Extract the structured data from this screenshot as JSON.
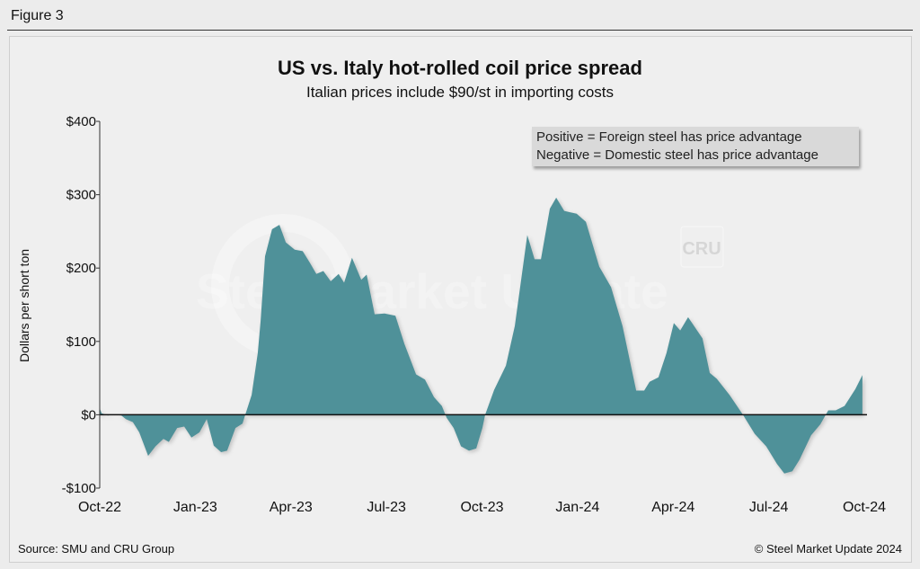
{
  "figure_label": "Figure 3",
  "footer": {
    "source": "Source: SMU and CRU Group",
    "copyright": "© Steel Market Update 2024"
  },
  "watermarks": {
    "smu": "Steel Market Update",
    "cru": "CRU"
  },
  "colors": {
    "fill": "#4f9199",
    "zero_line": "#111111"
  },
  "chart_data": {
    "type": "area",
    "title": "US vs. Italy hot-rolled coil price spread",
    "subtitle": "Italian prices include $90/st in importing costs",
    "ylabel": "Dollars per short ton",
    "xlabel": "",
    "ylim": [
      -100,
      400
    ],
    "yticks": [
      -100,
      0,
      100,
      200,
      300,
      400
    ],
    "ytick_labels": [
      "-$100",
      "$0",
      "$100",
      "$200",
      "$300",
      "$400"
    ],
    "xlim_months_since_oct22": [
      0,
      24
    ],
    "xtick_labels": [
      "Oct-22",
      "Jan-23",
      "Apr-23",
      "Jul-23",
      "Oct-23",
      "Jan-24",
      "Apr-24",
      "Jul-24",
      "Oct-24"
    ],
    "legend": [
      "Positive = Foreign steel has price advantage",
      "Negative = Domestic steel has price advantage"
    ],
    "legend_placement": "top-right",
    "grid": false,
    "x_units": "months since Oct-22",
    "points": [
      [
        0,
        9
      ],
      [
        0.06,
        2
      ],
      [
        0.25,
        -1
      ],
      [
        0.45,
        0
      ],
      [
        0.68,
        -1
      ],
      [
        0.82,
        -6
      ],
      [
        1.04,
        -10
      ],
      [
        1.24,
        -24
      ],
      [
        1.52,
        -56
      ],
      [
        1.75,
        -43
      ],
      [
        2.0,
        -33
      ],
      [
        2.17,
        -37
      ],
      [
        2.43,
        -18
      ],
      [
        2.65,
        -16
      ],
      [
        2.88,
        -31
      ],
      [
        3.13,
        -24
      ],
      [
        3.36,
        -6
      ],
      [
        3.58,
        -42
      ],
      [
        3.81,
        -51
      ],
      [
        4.0,
        -49
      ],
      [
        4.26,
        -18
      ],
      [
        4.48,
        -12
      ],
      [
        4.57,
        0
      ],
      [
        4.77,
        27
      ],
      [
        4.96,
        84
      ],
      [
        5.05,
        128
      ],
      [
        5.19,
        216
      ],
      [
        5.41,
        253
      ],
      [
        5.64,
        259
      ],
      [
        5.84,
        235
      ],
      [
        6.12,
        225
      ],
      [
        6.37,
        223
      ],
      [
        6.6,
        207
      ],
      [
        6.8,
        192
      ],
      [
        7.02,
        196
      ],
      [
        7.25,
        182
      ],
      [
        7.5,
        192
      ],
      [
        7.67,
        180
      ],
      [
        7.92,
        214
      ],
      [
        8.21,
        184
      ],
      [
        8.38,
        191
      ],
      [
        8.63,
        137
      ],
      [
        8.94,
        138
      ],
      [
        9.28,
        135
      ],
      [
        9.56,
        97
      ],
      [
        9.93,
        55
      ],
      [
        10.21,
        48
      ],
      [
        10.49,
        24
      ],
      [
        10.74,
        12
      ],
      [
        10.89,
        -4
      ],
      [
        11.11,
        -18
      ],
      [
        11.34,
        -43
      ],
      [
        11.59,
        -49
      ],
      [
        11.82,
        -46
      ],
      [
        12.01,
        -18
      ],
      [
        12.1,
        0
      ],
      [
        12.38,
        34
      ],
      [
        12.75,
        67
      ],
      [
        13.03,
        121
      ],
      [
        13.42,
        245
      ],
      [
        13.65,
        212
      ],
      [
        13.85,
        212
      ],
      [
        14.13,
        281
      ],
      [
        14.33,
        296
      ],
      [
        14.58,
        278
      ],
      [
        14.97,
        274
      ],
      [
        15.26,
        263
      ],
      [
        15.68,
        202
      ],
      [
        16.05,
        174
      ],
      [
        16.41,
        121
      ],
      [
        16.84,
        33
      ],
      [
        17.09,
        33
      ],
      [
        17.26,
        45
      ],
      [
        17.54,
        51
      ],
      [
        17.79,
        84
      ],
      [
        18.02,
        125
      ],
      [
        18.22,
        115
      ],
      [
        18.47,
        133
      ],
      [
        18.92,
        104
      ],
      [
        19.15,
        57
      ],
      [
        19.37,
        49
      ],
      [
        19.77,
        27
      ],
      [
        20.19,
        0
      ],
      [
        20.56,
        -26
      ],
      [
        20.92,
        -43
      ],
      [
        21.26,
        -67
      ],
      [
        21.49,
        -80
      ],
      [
        21.74,
        -77
      ],
      [
        21.97,
        -61
      ],
      [
        22.33,
        -28
      ],
      [
        22.62,
        -13
      ],
      [
        22.87,
        6
      ],
      [
        23.1,
        6
      ],
      [
        23.38,
        12
      ],
      [
        23.72,
        35
      ],
      [
        23.94,
        54
      ]
    ]
  }
}
